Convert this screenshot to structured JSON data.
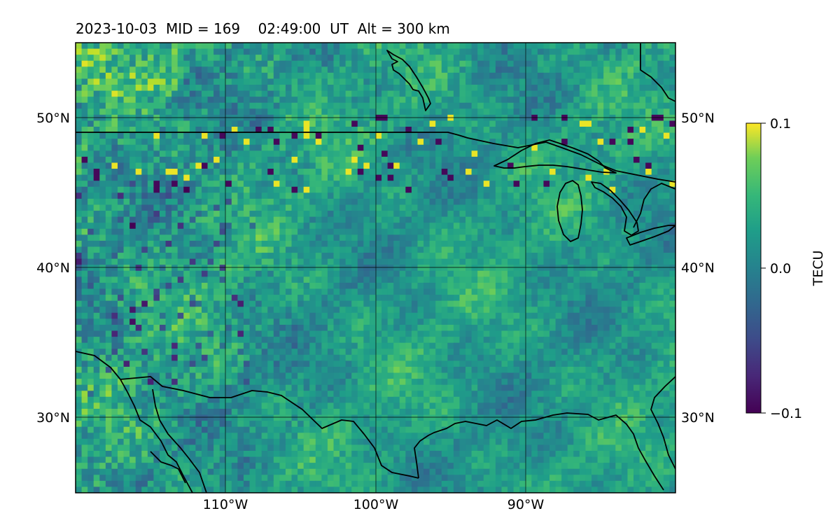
{
  "map": {
    "title": "2023-10-03  MID = 169    02:49:00  UT  Alt = 300 km",
    "lon_labels": [
      "110°W",
      "100°W",
      "90°W"
    ],
    "lat_labels": [
      "50°N",
      "40°N",
      "30°N"
    ],
    "lon_values": [
      -110,
      -100,
      -90
    ],
    "lat_values": [
      50,
      40,
      30
    ],
    "extent": {
      "lon_min": -120,
      "lon_max": -80,
      "lat_min": 25,
      "lat_max": 55
    },
    "colormap": "viridis",
    "colors": {
      "min": "#440154",
      "mid": "#21918c",
      "max": "#fde725",
      "coast": "#000000",
      "grid": "#000000"
    }
  },
  "colorbar": {
    "label": "TECU",
    "tick_labels": [
      "0.1",
      "0.0",
      "−0.1"
    ],
    "tick_values": [
      0.1,
      0.0,
      -0.1
    ],
    "vmin": -0.1,
    "vmax": 0.1
  }
}
